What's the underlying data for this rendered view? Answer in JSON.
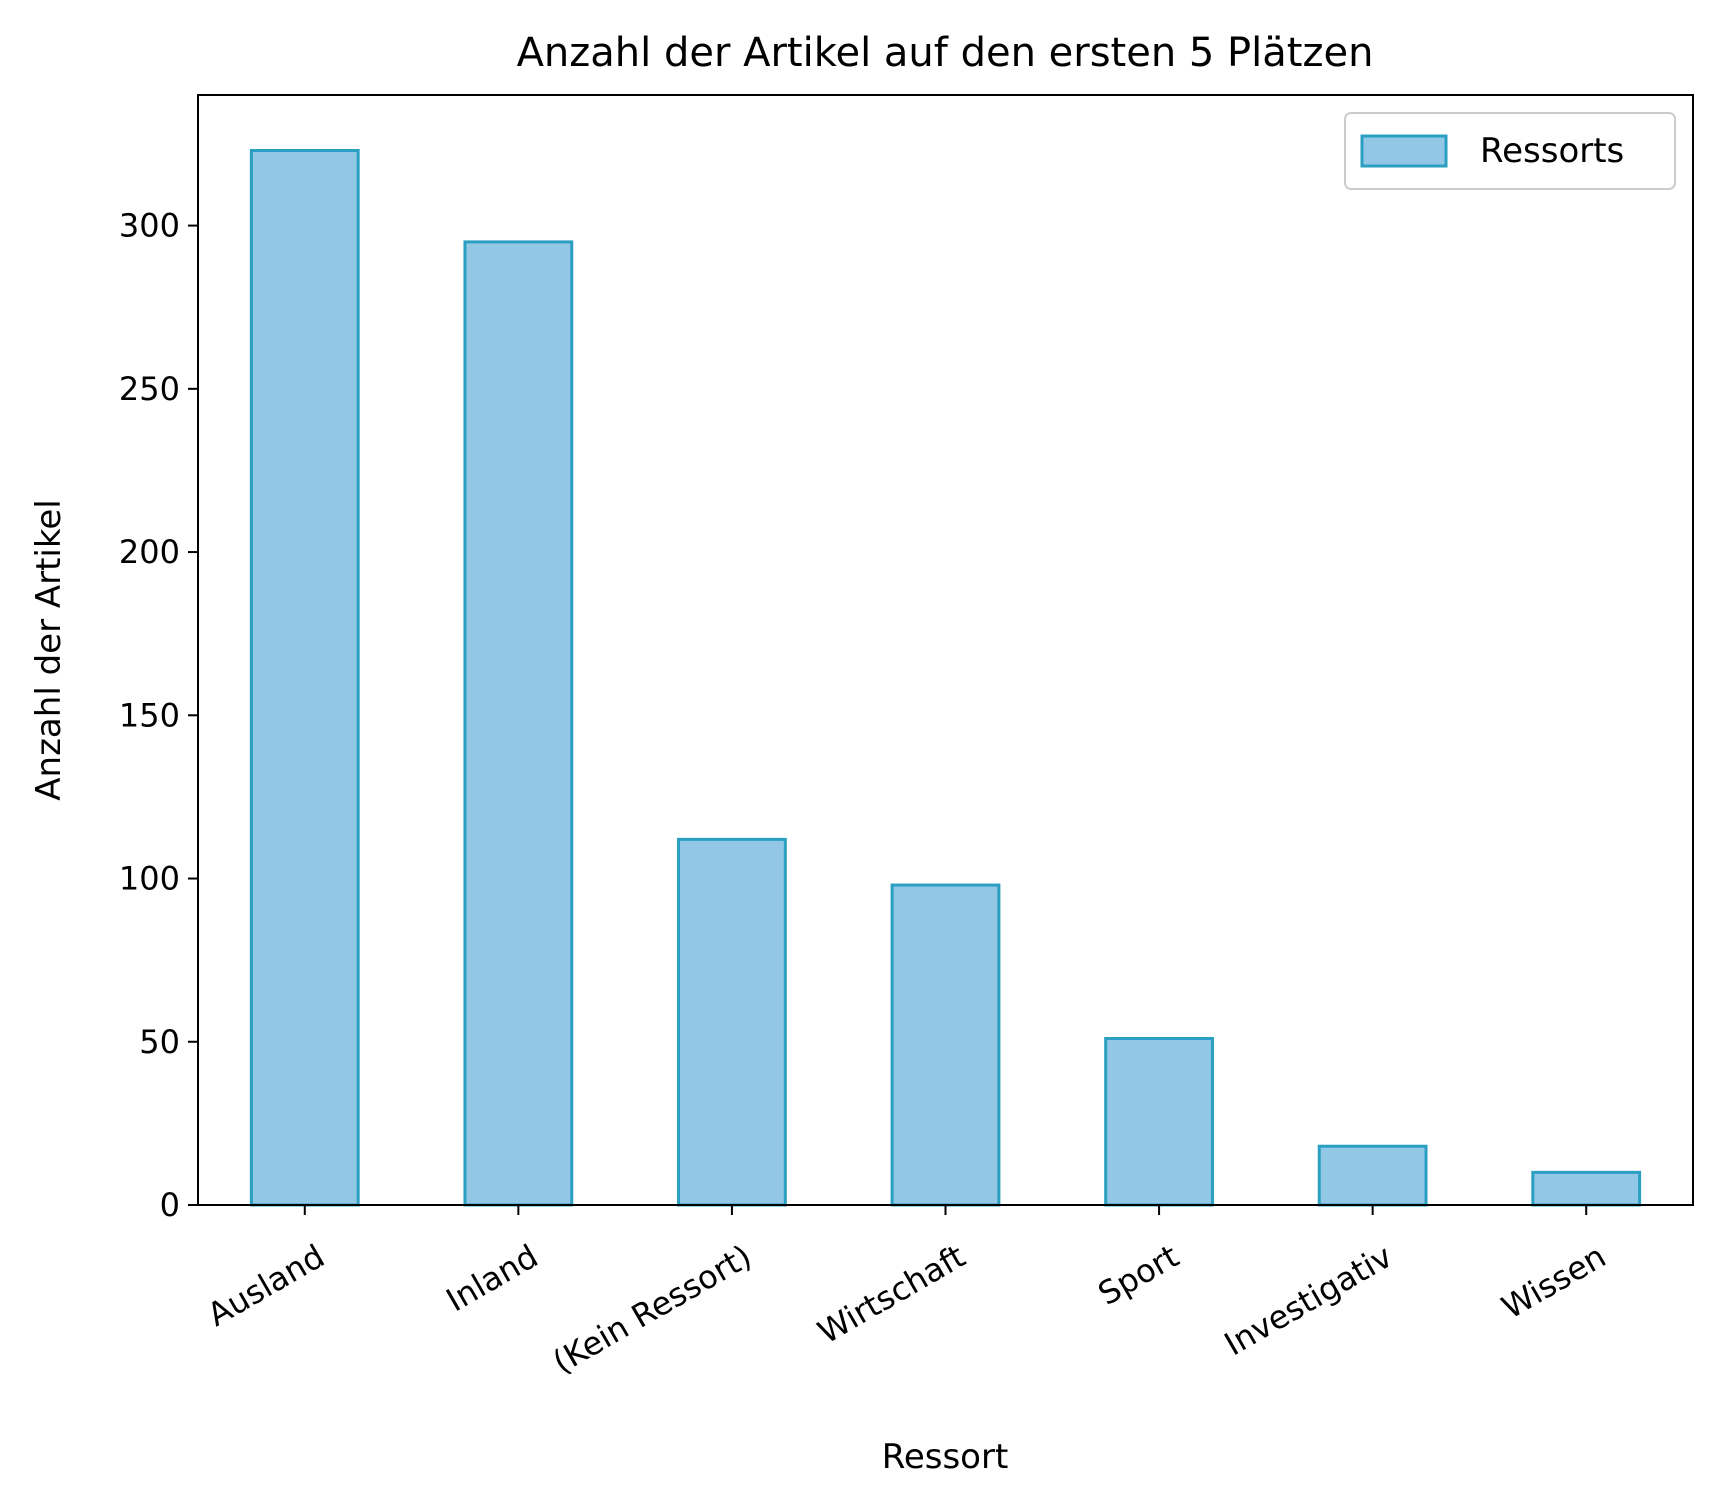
{
  "chart_data": {
    "type": "bar",
    "title": "Anzahl der Artikel auf den ersten 5 Plätzen",
    "xlabel": "Ressort",
    "ylabel": "Anzahl der Artikel",
    "categories": [
      "Ausland",
      "Inland",
      "(Kein Ressort)",
      "Wirtschaft",
      "Sport",
      "Investigativ",
      "Wissen"
    ],
    "series": [
      {
        "name": "Ressorts",
        "values": [
          323,
          295,
          112,
          98,
          51,
          18,
          10
        ]
      }
    ],
    "ylim": [
      0,
      340
    ],
    "yticks": [
      0,
      50,
      100,
      150,
      200,
      250,
      300
    ],
    "legend_position": "top-right",
    "grid": false,
    "colors": {
      "bar_fill": "#92c8e6",
      "bar_edge": "#2a9fc1"
    }
  }
}
